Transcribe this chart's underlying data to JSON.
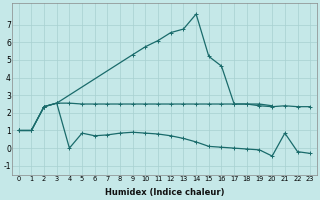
{
  "xlabel": "Humidex (Indice chaleur)",
  "background_color": "#c5e8e8",
  "line_color": "#1a6b6b",
  "grid_color": "#a8d0d0",
  "xlim": [
    -0.5,
    23.5
  ],
  "ylim": [
    -1.5,
    8.2
  ],
  "xticks": [
    0,
    1,
    2,
    3,
    4,
    5,
    6,
    7,
    8,
    9,
    10,
    11,
    12,
    13,
    14,
    15,
    16,
    17,
    18,
    19,
    20,
    21,
    22,
    23
  ],
  "yticks": [
    -1,
    0,
    1,
    2,
    3,
    4,
    5,
    6,
    7
  ],
  "line_top_x": [
    0,
    1,
    2,
    3,
    9,
    10,
    11,
    12,
    13,
    14,
    15,
    16,
    17,
    18,
    19,
    20
  ],
  "line_top_y": [
    1.0,
    1.0,
    2.35,
    2.55,
    5.3,
    5.75,
    6.1,
    6.55,
    6.75,
    7.6,
    5.2,
    4.65,
    2.5,
    2.5,
    2.5,
    2.4
  ],
  "line_mid_x": [
    0,
    1,
    2,
    3,
    4,
    5,
    6,
    7,
    8,
    9,
    10,
    11,
    12,
    13,
    14,
    15,
    16,
    17,
    18,
    19,
    20,
    21,
    22,
    23
  ],
  "line_mid_y": [
    1.0,
    1.0,
    2.35,
    2.55,
    2.55,
    2.5,
    2.5,
    2.5,
    2.5,
    2.5,
    2.5,
    2.5,
    2.5,
    2.5,
    2.5,
    2.5,
    2.5,
    2.5,
    2.5,
    2.4,
    2.35,
    2.4,
    2.35,
    2.35
  ],
  "line_bot_x": [
    0,
    1,
    2,
    3,
    4,
    5,
    6,
    7,
    8,
    9,
    10,
    11,
    12,
    13,
    14,
    15,
    16,
    17,
    18,
    19,
    20,
    21,
    22,
    23
  ],
  "line_bot_y": [
    1.0,
    1.0,
    2.35,
    2.55,
    0.0,
    0.85,
    0.7,
    0.75,
    0.85,
    0.9,
    0.85,
    0.8,
    0.7,
    0.55,
    0.35,
    0.1,
    0.05,
    0.0,
    -0.05,
    -0.1,
    -0.45,
    0.85,
    -0.2,
    -0.3
  ],
  "marker": "+",
  "marker_size": 3.5,
  "linewidth": 0.9
}
